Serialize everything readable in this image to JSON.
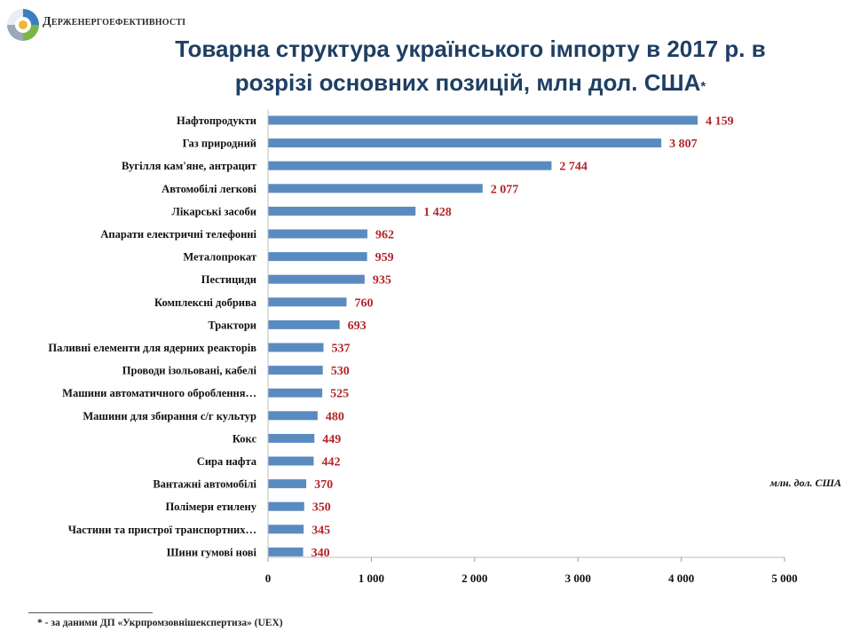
{
  "header": {
    "org_name": "Держенергоефективності",
    "title": "Товарна структура українського імпорту в 2017 р. в розрізі основних позицій, млн дол. США",
    "title_star": "*"
  },
  "footnote": "* - за даними  ДП «Укрпромзовнішекспертиза»  (UEX)",
  "colors": {
    "bar": "#5a8bc0",
    "value_label": "#b2252a",
    "title": "#1f3f63"
  },
  "chart_data": {
    "type": "bar",
    "orientation": "horizontal",
    "unit_label": "млн. дол. США",
    "categories": [
      "Нафтопродукти",
      "Газ природний",
      "Вугілля кам'яне, антрацит",
      "Автомобілі легкові",
      "Лікарські засоби",
      "Апарати електричні телефонні",
      "Металопрокат",
      "Пестициди",
      "Комплексні добрива",
      "Трактори",
      "Паливні елементи для ядерних реакторів",
      "Проводи ізольовані, кабелі",
      "Машини автоматичного оброблення…",
      "Машини для збирання с/г культур",
      "Кокс",
      "Сира нафта",
      "Вантажні автомобілі",
      "Полімери етилену",
      "Частини та пристрої транспортних…",
      "Шини гумові нові"
    ],
    "values": [
      4159,
      3807,
      2744,
      2077,
      1428,
      962,
      959,
      935,
      760,
      693,
      537,
      530,
      525,
      480,
      449,
      442,
      370,
      350,
      345,
      340
    ],
    "value_labels": [
      "4 159",
      "3 807",
      "2 744",
      "2 077",
      "1 428",
      "962",
      "959",
      "935",
      "760",
      "693",
      "537",
      "530",
      "525",
      "480",
      "449",
      "442",
      "370",
      "350",
      "345",
      "340"
    ],
    "xlim": [
      0,
      5000
    ],
    "xticks": [
      0,
      1000,
      2000,
      3000,
      4000,
      5000
    ],
    "xtick_labels": [
      "0",
      "1 000",
      "2 000",
      "3 000",
      "4 000",
      "5 000"
    ]
  }
}
